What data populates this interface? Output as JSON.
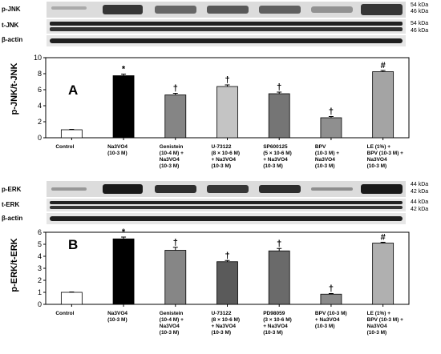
{
  "top": {
    "blots": [
      {
        "label": "p-JNK",
        "markers": [
          "54 kDa",
          "46 kDa"
        ]
      },
      {
        "label": "t-JNK",
        "markers": [
          "54 kDa",
          "46 kDa"
        ]
      },
      {
        "label": "β-actin",
        "markers": []
      }
    ],
    "panel_letter": "A"
  },
  "bottom": {
    "blots": [
      {
        "label": "p-ERK",
        "markers": [
          "44 kDa",
          "42 kDa"
        ]
      },
      {
        "label": "t-ERK",
        "markers": [
          "44 kDa",
          "42 kDa"
        ]
      },
      {
        "label": "β-actin",
        "markers": []
      }
    ],
    "panel_letter": "B"
  },
  "chart_data": [
    {
      "type": "bar",
      "ylabel": "p-JNK/t-JNK",
      "ylim": [
        0,
        10
      ],
      "yticks": [
        0,
        2,
        4,
        6,
        8,
        10
      ],
      "categories": [
        [
          "Control"
        ],
        [
          "Na3VO4",
          "(10-3 M)"
        ],
        [
          "Genistein",
          "(10-4 M) +",
          "Na3VO4",
          "(10-3 M)"
        ],
        [
          "U-73122",
          "(8 × 10-6 M)",
          "+ Na3VO4",
          "(10-3 M)"
        ],
        [
          "SP600125",
          "(5 × 10-6 M)",
          "+ Na3VO4",
          "(10-3 M)"
        ],
        [
          "BPV",
          "(10-3 M) +",
          "Na3VO4",
          "(10-3 M)"
        ],
        [
          "LE (1%) +",
          "BPV (10-3 M) +",
          "Na3VO4",
          "(10-3 M)"
        ]
      ],
      "values": [
        1.0,
        7.75,
        5.35,
        6.4,
        5.5,
        2.5,
        8.25
      ],
      "errors": [
        0.05,
        0.2,
        0.2,
        0.2,
        0.2,
        0.15,
        0.15
      ],
      "annotations": [
        "",
        "*",
        "†",
        "†",
        "†",
        "†",
        "#"
      ],
      "colors": [
        "#ffffff",
        "#000000",
        "#858585",
        "#c4c4c4",
        "#757575",
        "#8f8f8f",
        "#a4a4a4"
      ]
    },
    {
      "type": "bar",
      "ylabel": "p-ERK/t-ERK",
      "ylim": [
        0,
        6
      ],
      "yticks": [
        0,
        1,
        2,
        3,
        4,
        5,
        6
      ],
      "categories": [
        [
          "Control"
        ],
        [
          "Na3VO4",
          "(10-3 M)"
        ],
        [
          "Genistein",
          "(10-4 M) +",
          "Na3VO4",
          "(10-3 M)"
        ],
        [
          "U-73122",
          "(8 × 10-6 M)",
          "+ Na3VO4",
          "(10-3 M)"
        ],
        [
          "PD98059",
          "(3 × 10-6 M)",
          "+ Na3VO4",
          "(10-3 M)"
        ],
        [
          "BPV (10-3 M)",
          "+ Na3VO4",
          "(10-3 M)"
        ],
        [
          "LE (1%) +",
          "BPV (10-3 M) +",
          "Na3VO4",
          "(10-3 M)"
        ]
      ],
      "values": [
        1.0,
        5.45,
        4.5,
        3.55,
        4.45,
        0.85,
        5.1
      ],
      "errors": [
        0.03,
        0.15,
        0.25,
        0.1,
        0.2,
        0.05,
        0.07
      ],
      "annotations": [
        "",
        "*",
        "†",
        "†",
        "†",
        "†",
        "#"
      ],
      "colors": [
        "#ffffff",
        "#000000",
        "#868686",
        "#5a5a5a",
        "#6a6a6a",
        "#8a8a8a",
        "#b0b0b0"
      ]
    }
  ]
}
